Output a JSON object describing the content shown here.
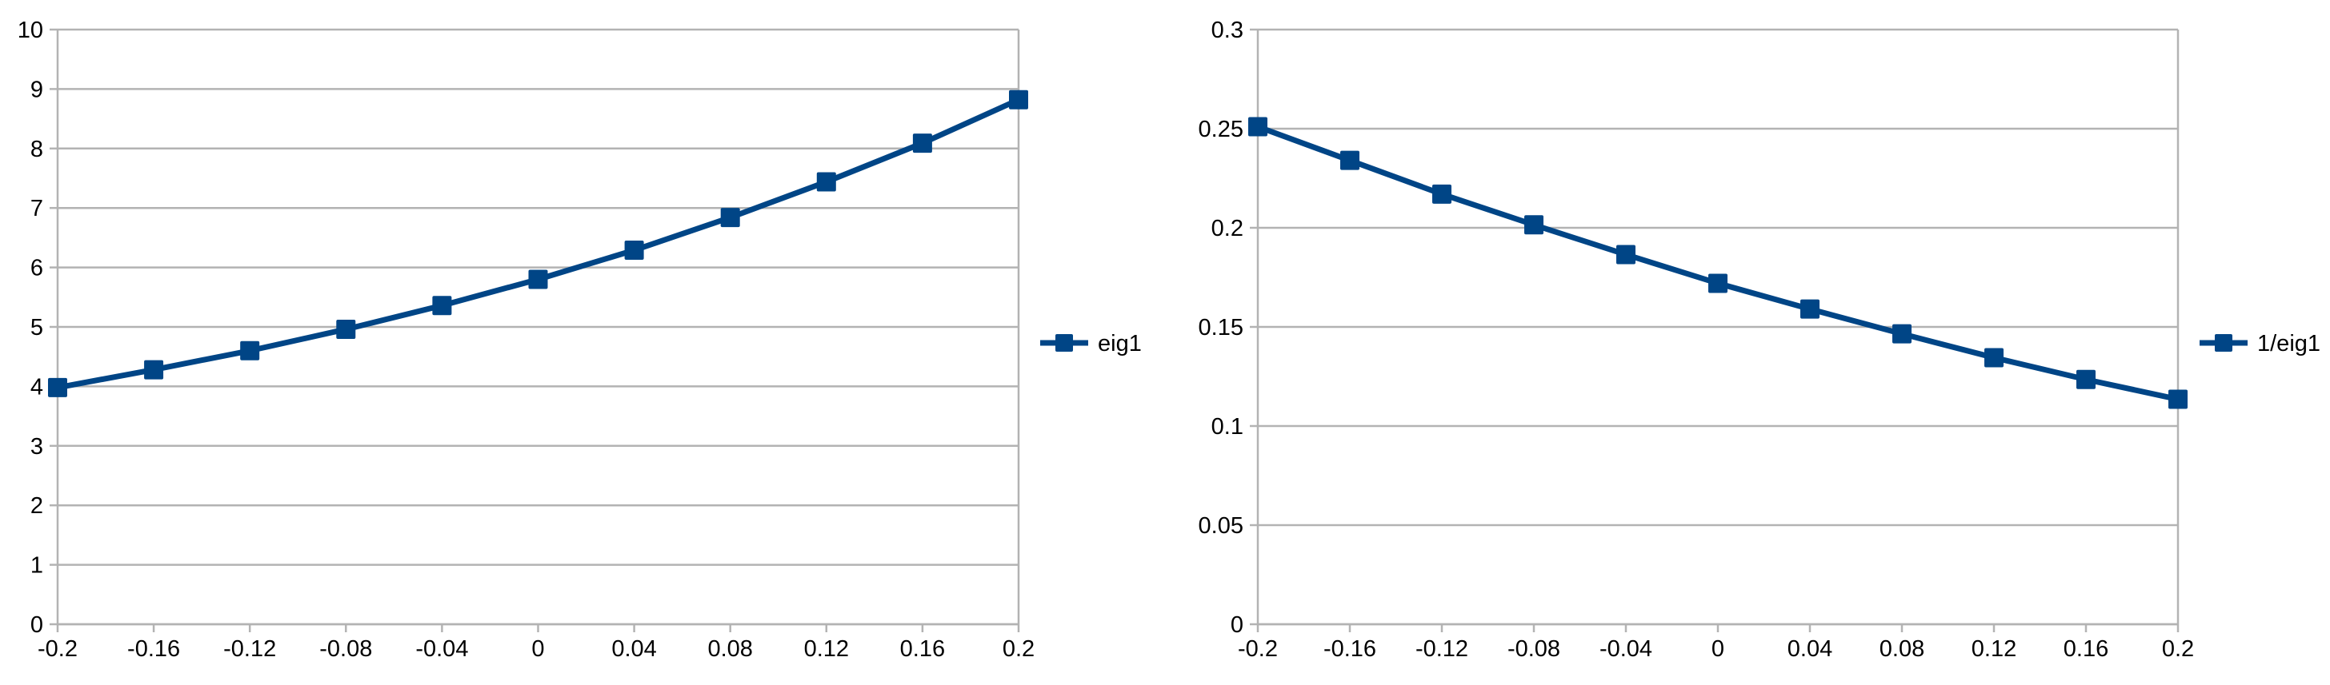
{
  "chart_data": [
    {
      "type": "line",
      "x": [
        -0.2,
        -0.16,
        -0.12,
        -0.08,
        -0.04,
        0,
        0.04,
        0.08,
        0.12,
        0.16,
        0.2
      ],
      "x_tick_labels": [
        "-0.2",
        "-0.16",
        "-0.12",
        "-0.08",
        "-0.04",
        "0",
        "0.04",
        "0.08",
        "0.12",
        "0.16",
        "0.2"
      ],
      "y_ticks": [
        0,
        1,
        2,
        3,
        4,
        5,
        6,
        7,
        8,
        9,
        10
      ],
      "y_tick_labels": [
        "0",
        "1",
        "2",
        "3",
        "4",
        "5",
        "6",
        "7",
        "8",
        "9",
        "10"
      ],
      "ylim": [
        0,
        10
      ],
      "grid": true,
      "legend_position": "right",
      "series": [
        {
          "name": "eig1",
          "values": [
            3.98,
            4.28,
            4.6,
            4.96,
            5.36,
            5.8,
            6.29,
            6.84,
            7.44,
            8.09,
            8.82
          ],
          "color": "#004586",
          "marker": "square"
        }
      ]
    },
    {
      "type": "line",
      "x": [
        -0.2,
        -0.16,
        -0.12,
        -0.08,
        -0.04,
        0,
        0.04,
        0.08,
        0.12,
        0.16,
        0.2
      ],
      "x_tick_labels": [
        "-0.2",
        "-0.16",
        "-0.12",
        "-0.08",
        "-0.04",
        "0",
        "0.04",
        "0.08",
        "0.12",
        "0.16",
        "0.2"
      ],
      "y_ticks": [
        0,
        0.05,
        0.1,
        0.15,
        0.2,
        0.25,
        0.3
      ],
      "y_tick_labels": [
        "0",
        "0.05",
        "0.1",
        "0.15",
        "0.2",
        "0.25",
        "0.3"
      ],
      "ylim": [
        0,
        0.3
      ],
      "grid": true,
      "legend_position": "right",
      "series": [
        {
          "name": "1/eig1",
          "values": [
            0.251,
            0.234,
            0.217,
            0.2015,
            0.1865,
            0.172,
            0.159,
            0.1465,
            0.1345,
            0.1235,
            0.1135
          ],
          "color": "#004586",
          "marker": "square"
        }
      ]
    }
  ]
}
